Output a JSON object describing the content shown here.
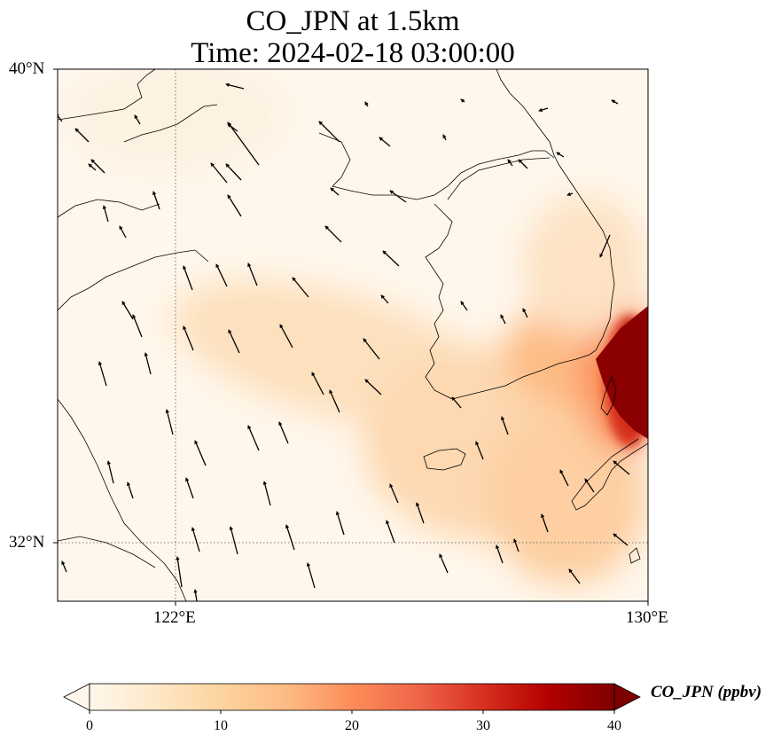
{
  "title": "CO_JPN at 1.5km",
  "subtitle": "Time: 2024-02-18 03:00:00",
  "axes": {
    "lat_ticks": [
      "40°N",
      "32°N"
    ],
    "lon_ticks": [
      "122°E",
      "130°E"
    ],
    "lon_range": [
      120,
      130
    ],
    "lat_range": [
      31,
      40
    ],
    "gridlines": "dotted at 122°E and 32°N"
  },
  "colorbar": {
    "label": "CO_JPN (ppbv)",
    "ticks": [
      "0",
      "10",
      "20",
      "30",
      "40"
    ],
    "range": [
      0,
      40
    ],
    "extend": "both",
    "colormap": "OrRd",
    "colors": [
      "#fff7ec",
      "#fee8c8",
      "#fdd49e",
      "#fdbb84",
      "#fc8d59",
      "#ef6548",
      "#d7301f",
      "#b30000",
      "#7f0000"
    ]
  },
  "features": {
    "high_concentration": "southeastern Korea, exceeding 40 ppbv",
    "wind_vectors": "mostly southeast-to-northwest flow over the Yellow Sea"
  }
}
